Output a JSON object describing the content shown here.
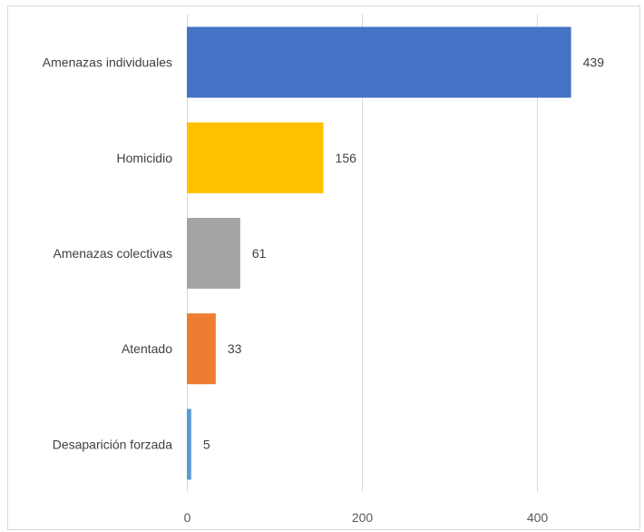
{
  "chart_data": {
    "type": "bar",
    "orientation": "horizontal",
    "title": "",
    "xlabel": "",
    "ylabel": "",
    "categories": [
      "Amenazas individuales",
      "Homicidio",
      "Amenazas colectivas",
      "Atentado",
      "Desaparición forzada"
    ],
    "values": [
      439,
      156,
      61,
      33,
      5
    ],
    "value_labels": [
      "439",
      "156",
      "61",
      "33",
      "5"
    ],
    "colors": [
      "#4472C4",
      "#FFC000",
      "#A5A5A5",
      "#ED7D31",
      "#5B9BD5"
    ],
    "xlim": [
      0,
      480
    ],
    "x_ticks": [
      0,
      200,
      400
    ],
    "x_tick_labels": [
      "0",
      "200",
      "400"
    ],
    "grid": "vertical",
    "legend": "none"
  }
}
